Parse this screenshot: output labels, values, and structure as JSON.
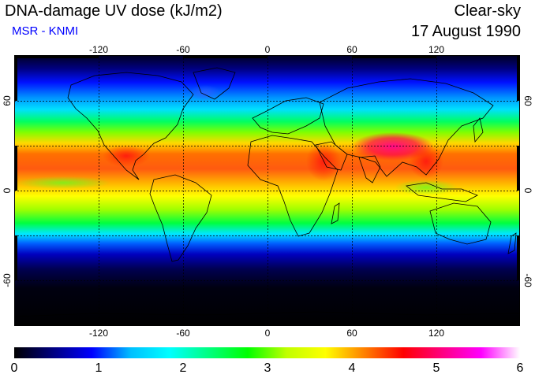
{
  "header": {
    "title": "DNA-damage UV dose (kJ/m2)",
    "source": "MSR - KNMI",
    "condition": "Clear-sky",
    "date": "17 August 1990"
  },
  "map": {
    "lon_ticks": [
      "-120",
      "-60",
      "0",
      "60",
      "120"
    ],
    "lat_ticks_left": [
      "60",
      "0",
      "-60"
    ],
    "lat_ticks_right": [
      "60",
      "0",
      "-60"
    ]
  },
  "colorbar": {
    "labels": [
      "0",
      "1",
      "2",
      "3",
      "4",
      "5",
      "6"
    ],
    "stops": [
      "#000000",
      "#000080",
      "#0000ff",
      "#00c0ff",
      "#00ffff",
      "#00ff80",
      "#00ff00",
      "#c0ff00",
      "#ffff00",
      "#ff8000",
      "#ff0000",
      "#ff0080",
      "#ff00ff",
      "#ffffff"
    ]
  }
}
